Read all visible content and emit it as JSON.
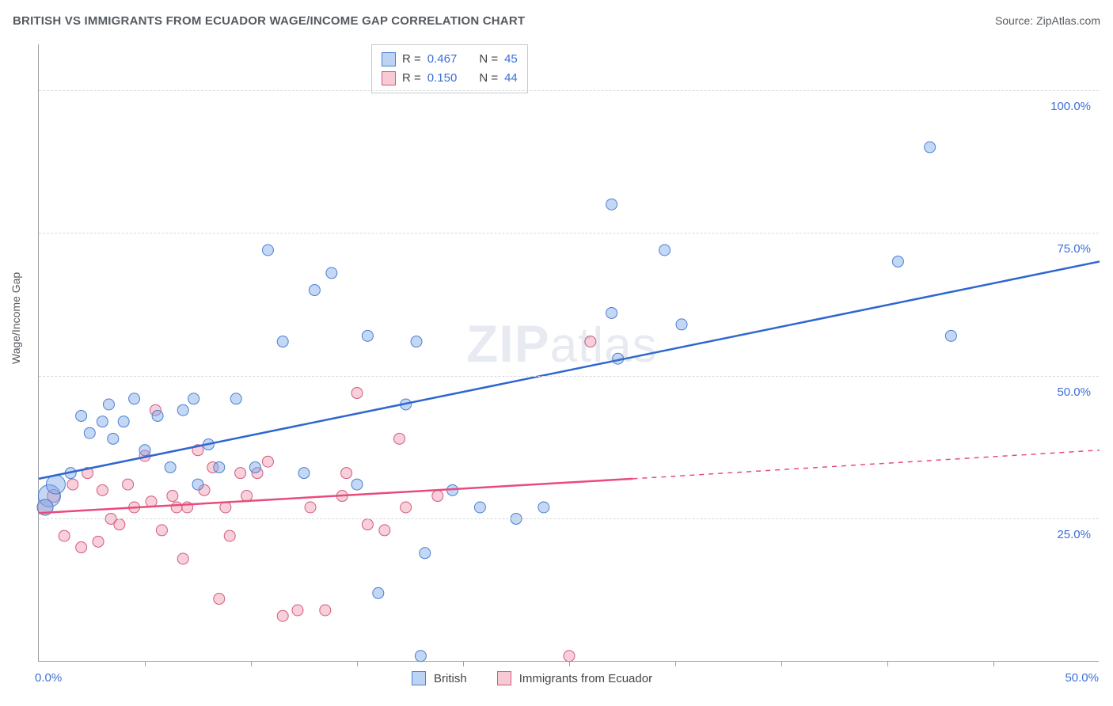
{
  "title": "BRITISH VS IMMIGRANTS FROM ECUADOR WAGE/INCOME GAP CORRELATION CHART",
  "source_prefix": "Source: ",
  "source_name": "ZipAtlas.com",
  "ylabel": "Wage/Income Gap",
  "watermark": "ZIPatlas",
  "chart": {
    "type": "scatter",
    "xlim": [
      0,
      50
    ],
    "ylim": [
      0,
      108
    ],
    "ytick_values": [
      25,
      50,
      75,
      100
    ],
    "ytick_labels": [
      "25.0%",
      "50.0%",
      "75.0%",
      "100.0%"
    ],
    "xtick_values": [
      5,
      10,
      15,
      20,
      25,
      30,
      35,
      40,
      45
    ],
    "x_left_label": "0.0%",
    "x_right_label": "50.0%",
    "background_color": "#ffffff",
    "grid_color": "#d8dadd",
    "axis_color": "#9aa0a6",
    "label_color": "#3b6fd8",
    "series": {
      "british": {
        "label": "British",
        "r_label": "R =",
        "r_value": "0.467",
        "n_label": "N =",
        "n_value": "45",
        "fill_color": "rgba(124,168,232,0.45)",
        "stroke_color": "#4a7fd0",
        "line_color": "#2f66cf",
        "line_width": 2.5,
        "trend": {
          "x1": 0,
          "y1": 32,
          "x2": 50,
          "y2": 70
        },
        "points": [
          {
            "x": 0.5,
            "y": 29,
            "r": 14
          },
          {
            "x": 0.8,
            "y": 31,
            "r": 12
          },
          {
            "x": 0.3,
            "y": 27,
            "r": 10
          },
          {
            "x": 1.5,
            "y": 33,
            "r": 7
          },
          {
            "x": 2.0,
            "y": 43,
            "r": 7
          },
          {
            "x": 2.4,
            "y": 40,
            "r": 7
          },
          {
            "x": 3.0,
            "y": 42,
            "r": 7
          },
          {
            "x": 3.3,
            "y": 45,
            "r": 7
          },
          {
            "x": 3.5,
            "y": 39,
            "r": 7
          },
          {
            "x": 4.0,
            "y": 42,
            "r": 7
          },
          {
            "x": 4.5,
            "y": 46,
            "r": 7
          },
          {
            "x": 5.0,
            "y": 37,
            "r": 7
          },
          {
            "x": 5.6,
            "y": 43,
            "r": 7
          },
          {
            "x": 6.2,
            "y": 34,
            "r": 7
          },
          {
            "x": 6.8,
            "y": 44,
            "r": 7
          },
          {
            "x": 7.3,
            "y": 46,
            "r": 7
          },
          {
            "x": 7.5,
            "y": 31,
            "r": 7
          },
          {
            "x": 8.0,
            "y": 38,
            "r": 7
          },
          {
            "x": 8.5,
            "y": 34,
            "r": 7
          },
          {
            "x": 9.3,
            "y": 46,
            "r": 7
          },
          {
            "x": 10.2,
            "y": 34,
            "r": 7
          },
          {
            "x": 10.8,
            "y": 72,
            "r": 7
          },
          {
            "x": 11.5,
            "y": 56,
            "r": 7
          },
          {
            "x": 12.5,
            "y": 33,
            "r": 7
          },
          {
            "x": 13.0,
            "y": 65,
            "r": 7
          },
          {
            "x": 13.8,
            "y": 68,
            "r": 7
          },
          {
            "x": 15.0,
            "y": 31,
            "r": 7
          },
          {
            "x": 15.5,
            "y": 57,
            "r": 7
          },
          {
            "x": 16.0,
            "y": 12,
            "r": 7
          },
          {
            "x": 17.3,
            "y": 45,
            "r": 7
          },
          {
            "x": 18.2,
            "y": 19,
            "r": 7
          },
          {
            "x": 18.0,
            "y": 1,
            "r": 7
          },
          {
            "x": 17.8,
            "y": 56,
            "r": 7
          },
          {
            "x": 19.5,
            "y": 30,
            "r": 7
          },
          {
            "x": 20.8,
            "y": 27,
            "r": 7
          },
          {
            "x": 22.5,
            "y": 25,
            "r": 7
          },
          {
            "x": 23.8,
            "y": 27,
            "r": 7
          },
          {
            "x": 27.0,
            "y": 80,
            "r": 7
          },
          {
            "x": 27.3,
            "y": 53,
            "r": 7
          },
          {
            "x": 27.0,
            "y": 61,
            "r": 7
          },
          {
            "x": 29.5,
            "y": 72,
            "r": 7
          },
          {
            "x": 30.3,
            "y": 59,
            "r": 7
          },
          {
            "x": 40.5,
            "y": 70,
            "r": 7
          },
          {
            "x": 42.0,
            "y": 90,
            "r": 7
          },
          {
            "x": 43.0,
            "y": 57,
            "r": 7
          }
        ]
      },
      "ecuador": {
        "label": "Immigrants from Ecuador",
        "r_label": "R =",
        "r_value": "0.150",
        "n_label": "N =",
        "n_value": "44",
        "fill_color": "rgba(240,150,170,0.45)",
        "stroke_color": "#d05a80",
        "line_color": "#e94b7b",
        "line_width": 2.5,
        "trend_solid": {
          "x1": 0,
          "y1": 26,
          "x2": 28,
          "y2": 32
        },
        "trend_dash": {
          "x1": 28,
          "y1": 32,
          "x2": 50,
          "y2": 37
        },
        "points": [
          {
            "x": 0.3,
            "y": 27,
            "r": 10
          },
          {
            "x": 0.7,
            "y": 29,
            "r": 8
          },
          {
            "x": 1.2,
            "y": 22,
            "r": 7
          },
          {
            "x": 1.6,
            "y": 31,
            "r": 7
          },
          {
            "x": 2.0,
            "y": 20,
            "r": 7
          },
          {
            "x": 2.3,
            "y": 33,
            "r": 7
          },
          {
            "x": 2.8,
            "y": 21,
            "r": 7
          },
          {
            "x": 3.0,
            "y": 30,
            "r": 7
          },
          {
            "x": 3.4,
            "y": 25,
            "r": 7
          },
          {
            "x": 3.8,
            "y": 24,
            "r": 7
          },
          {
            "x": 4.2,
            "y": 31,
            "r": 7
          },
          {
            "x": 4.5,
            "y": 27,
            "r": 7
          },
          {
            "x": 5.0,
            "y": 36,
            "r": 7
          },
          {
            "x": 5.3,
            "y": 28,
            "r": 7
          },
          {
            "x": 5.5,
            "y": 44,
            "r": 7
          },
          {
            "x": 5.8,
            "y": 23,
            "r": 7
          },
          {
            "x": 6.3,
            "y": 29,
            "r": 7
          },
          {
            "x": 6.5,
            "y": 27,
            "r": 7
          },
          {
            "x": 6.8,
            "y": 18,
            "r": 7
          },
          {
            "x": 7.0,
            "y": 27,
            "r": 7
          },
          {
            "x": 7.5,
            "y": 37,
            "r": 7
          },
          {
            "x": 7.8,
            "y": 30,
            "r": 7
          },
          {
            "x": 8.2,
            "y": 34,
            "r": 7
          },
          {
            "x": 8.5,
            "y": 11,
            "r": 7
          },
          {
            "x": 8.8,
            "y": 27,
            "r": 7
          },
          {
            "x": 9.0,
            "y": 22,
            "r": 7
          },
          {
            "x": 9.5,
            "y": 33,
            "r": 7
          },
          {
            "x": 9.8,
            "y": 29,
            "r": 7
          },
          {
            "x": 10.3,
            "y": 33,
            "r": 7
          },
          {
            "x": 10.8,
            "y": 35,
            "r": 7
          },
          {
            "x": 11.5,
            "y": 8,
            "r": 7
          },
          {
            "x": 12.2,
            "y": 9,
            "r": 7
          },
          {
            "x": 12.8,
            "y": 27,
            "r": 7
          },
          {
            "x": 13.5,
            "y": 9,
            "r": 7
          },
          {
            "x": 14.3,
            "y": 29,
            "r": 7
          },
          {
            "x": 15.0,
            "y": 47,
            "r": 7
          },
          {
            "x": 15.5,
            "y": 24,
            "r": 7
          },
          {
            "x": 16.3,
            "y": 23,
            "r": 7
          },
          {
            "x": 17.0,
            "y": 39,
            "r": 7
          },
          {
            "x": 17.3,
            "y": 27,
            "r": 7
          },
          {
            "x": 18.8,
            "y": 29,
            "r": 7
          },
          {
            "x": 25.0,
            "y": 1,
            "r": 7
          },
          {
            "x": 26.0,
            "y": 56,
            "r": 7
          },
          {
            "x": 14.5,
            "y": 33,
            "r": 7
          }
        ]
      }
    }
  },
  "legend_bottom": {
    "item1": "British",
    "item2": "Immigrants from Ecuador"
  }
}
